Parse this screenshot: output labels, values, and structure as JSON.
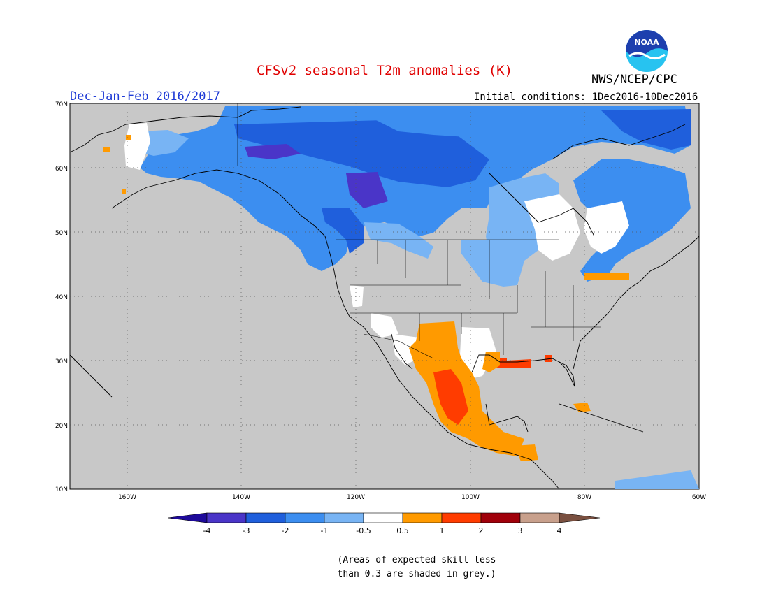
{
  "header": {
    "title": "CFSv2 seasonal T2m anomalies (K)",
    "season": "Dec-Jan-Feb 2016/2017",
    "initial_conditions": "Initial conditions: 1Dec2016-10Dec2016",
    "agency": "NWS/NCEP/CPC",
    "logo_text": "NOAA"
  },
  "map": {
    "lon_range": [
      -170,
      -60
    ],
    "lat_range": [
      10,
      70
    ],
    "lat_labels": [
      "70N",
      "60N",
      "50N",
      "40N",
      "30N",
      "20N",
      "10N"
    ],
    "lon_labels": [
      "160W",
      "140W",
      "120W",
      "100W",
      "80W",
      "60W"
    ],
    "background_color": "#c8c8c8",
    "gridlines": "dotted"
  },
  "colorbar": {
    "ticks": [
      "-4",
      "-3",
      "-2",
      "-1",
      "-0.5",
      "0.5",
      "1",
      "2",
      "3",
      "4"
    ],
    "colors": [
      "#1e0a9a",
      "#4a35c8",
      "#1f5fdc",
      "#3c8ef0",
      "#78b4f4",
      "#ffffff",
      "#ff9a00",
      "#ff3c00",
      "#a0000a",
      "#c8a08c",
      "#7a5040"
    ]
  },
  "footnote": {
    "line1": "(Areas of expected skill less",
    "line2": "than 0.3 are shaded in grey.)"
  },
  "colors": {
    "title": "#e00000",
    "season": "#1f3bd6",
    "grey_skill": "#c8c8c8"
  }
}
